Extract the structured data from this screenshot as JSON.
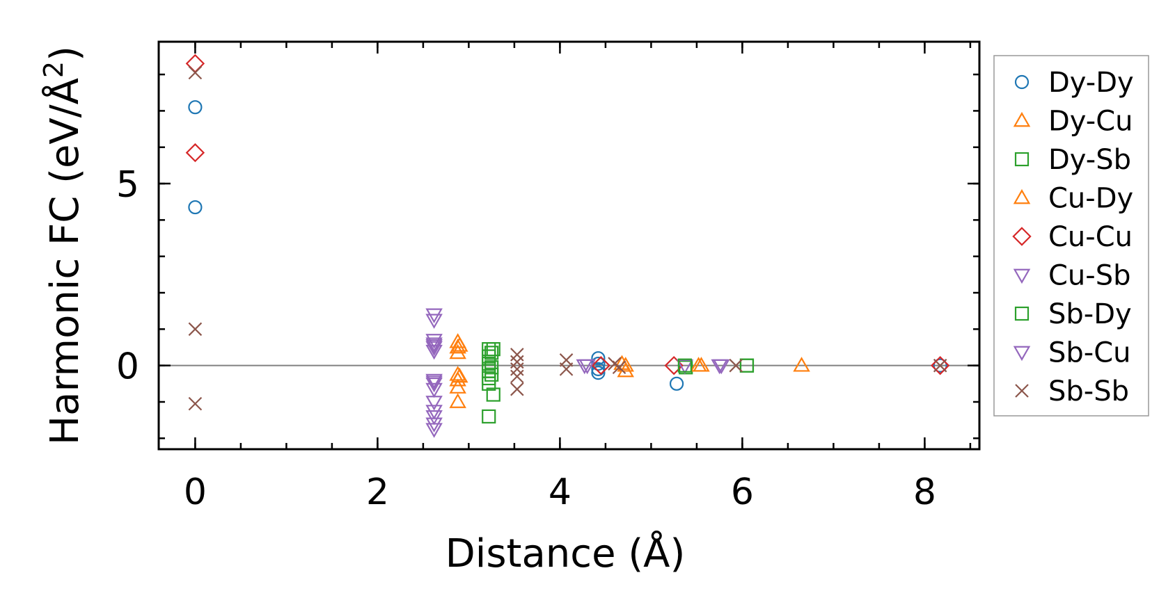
{
  "chart_data": {
    "type": "scatter",
    "title": "",
    "xlabel": "Distance (Å)",
    "ylabel_main": "Harmonic FC (eV/Å",
    "ylabel_sup": "2",
    "ylabel_close": ")",
    "xlim": [
      -0.4,
      8.6
    ],
    "ylim": [
      -2.3,
      8.9
    ],
    "x_ticks": [
      0,
      2,
      4,
      6,
      8
    ],
    "x_tick_labels": [
      "0",
      "2",
      "4",
      "6",
      "8"
    ],
    "y_ticks": [
      0,
      5
    ],
    "y_tick_labels": [
      "0",
      "5"
    ],
    "x_minor_step": 0.5,
    "y_minor_step": 1,
    "zero_line": 0,
    "legend_position": "right-outside",
    "colors": {
      "blue": "#1f77b4",
      "orange": "#ff7f0e",
      "green": "#2ca02c",
      "red": "#d62728",
      "purple": "#9467bd",
      "brown": "#8c564b",
      "zero_line": "#808080"
    },
    "series": [
      {
        "name": "Dy-Dy",
        "marker": "circle",
        "color": "#1f77b4",
        "points": [
          [
            0,
            7.1
          ],
          [
            0,
            4.35
          ],
          [
            4.42,
            0.2
          ],
          [
            4.42,
            0.05
          ],
          [
            4.42,
            -0.1
          ],
          [
            4.42,
            -0.2
          ],
          [
            5.28,
            -0.5
          ],
          [
            8.17,
            0.0
          ]
        ]
      },
      {
        "name": "Dy-Cu",
        "marker": "triangle-up",
        "color": "#ff7f0e",
        "points": [
          [
            2.88,
            0.65
          ],
          [
            2.88,
            0.5
          ],
          [
            2.88,
            0.35
          ],
          [
            2.88,
            -0.25
          ],
          [
            2.88,
            -0.4
          ],
          [
            2.88,
            -0.6
          ],
          [
            2.88,
            -1.0
          ],
          [
            4.72,
            0.0
          ],
          [
            4.72,
            -0.15
          ],
          [
            5.55,
            0.0
          ],
          [
            6.65,
            0.0
          ]
        ]
      },
      {
        "name": "Dy-Sb",
        "marker": "square",
        "color": "#2ca02c",
        "points": [
          [
            3.22,
            0.45
          ],
          [
            3.22,
            0.25
          ],
          [
            3.22,
            0.05
          ],
          [
            3.22,
            -0.15
          ],
          [
            3.22,
            -0.35
          ],
          [
            3.22,
            -0.5
          ],
          [
            3.22,
            -1.4
          ],
          [
            3.27,
            0.45
          ],
          [
            3.27,
            -0.8
          ],
          [
            5.38,
            -0.05
          ],
          [
            6.05,
            0.0
          ]
        ]
      },
      {
        "name": "Cu-Dy",
        "marker": "triangle-up",
        "color": "#ff7f0e",
        "points": [
          [
            2.9,
            0.55
          ],
          [
            2.9,
            -0.3
          ],
          [
            4.68,
            0.05
          ],
          [
            5.52,
            0.0
          ]
        ]
      },
      {
        "name": "Cu-Cu",
        "marker": "diamond",
        "color": "#d62728",
        "points": [
          [
            0,
            8.3
          ],
          [
            0,
            5.85
          ],
          [
            4.45,
            0.0
          ],
          [
            5.25,
            0.0
          ],
          [
            8.17,
            0.0
          ]
        ]
      },
      {
        "name": "Cu-Sb",
        "marker": "triangle-down",
        "color": "#9467bd",
        "points": [
          [
            2.62,
            1.4
          ],
          [
            2.62,
            1.25
          ],
          [
            2.62,
            0.7
          ],
          [
            2.62,
            0.6
          ],
          [
            2.62,
            0.5
          ],
          [
            2.62,
            0.4
          ],
          [
            2.62,
            -0.4
          ],
          [
            2.62,
            -0.5
          ],
          [
            2.62,
            -0.65
          ],
          [
            2.62,
            -1.0
          ],
          [
            2.62,
            -1.25
          ],
          [
            2.62,
            -1.4
          ],
          [
            2.62,
            -1.6
          ],
          [
            2.62,
            -1.75
          ],
          [
            4.27,
            0.0
          ],
          [
            5.37,
            0.0
          ],
          [
            5.77,
            0.0
          ]
        ]
      },
      {
        "name": "Sb-Dy",
        "marker": "square",
        "color": "#2ca02c",
        "points": [
          [
            3.25,
            0.35
          ],
          [
            3.25,
            -0.05
          ],
          [
            3.25,
            -0.25
          ],
          [
            5.37,
            0.0
          ],
          [
            6.05,
            0.0
          ]
        ]
      },
      {
        "name": "Sb-Cu",
        "marker": "triangle-down",
        "color": "#9467bd",
        "points": [
          [
            2.62,
            0.55
          ],
          [
            2.62,
            -0.45
          ],
          [
            4.3,
            0.0
          ],
          [
            5.75,
            0.0
          ]
        ]
      },
      {
        "name": "Sb-Sb",
        "marker": "x",
        "color": "#8c564b",
        "points": [
          [
            0,
            8.05
          ],
          [
            0,
            1.0
          ],
          [
            0,
            -1.05
          ],
          [
            3.53,
            0.3
          ],
          [
            3.53,
            0.1
          ],
          [
            3.53,
            -0.1
          ],
          [
            3.53,
            -0.3
          ],
          [
            3.53,
            -0.65
          ],
          [
            4.07,
            0.15
          ],
          [
            4.07,
            -0.1
          ],
          [
            4.6,
            0.05
          ],
          [
            4.65,
            -0.05
          ],
          [
            5.93,
            0.0
          ],
          [
            8.17,
            0.0
          ]
        ]
      }
    ]
  }
}
